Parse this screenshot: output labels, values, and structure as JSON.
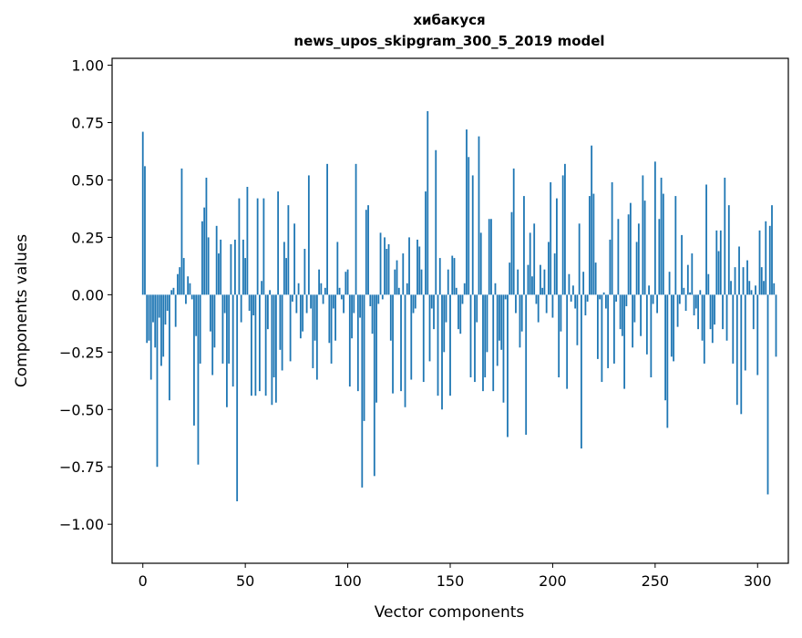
{
  "chart_data": {
    "type": "bar",
    "title": "хибакуся",
    "subtitle": "news_upos_skipgram_300_5_2019 model",
    "xlabel": "Vector components",
    "ylabel": "Components values",
    "xlim": [
      -15,
      315
    ],
    "ylim": [
      -1.17,
      1.03
    ],
    "xticks": [
      0,
      50,
      100,
      150,
      200,
      250,
      300
    ],
    "xtick_labels": [
      "0",
      "50",
      "100",
      "150",
      "200",
      "250",
      "300"
    ],
    "yticks": [
      1.0,
      0.75,
      0.5,
      0.25,
      0.0,
      -0.25,
      -0.5,
      -0.75,
      -1.0
    ],
    "ytick_labels": [
      "1.00",
      "0.75",
      "0.50",
      "0.25",
      "0.00",
      "−0.25",
      "−0.50",
      "−0.75",
      "−1.00"
    ],
    "grid": false,
    "color": "#1f77b4",
    "series": [
      {
        "values": [
          0.71,
          0.56,
          -0.21,
          -0.2,
          -0.37,
          -0.12,
          -0.23,
          -0.75,
          -0.1,
          -0.31,
          -0.27,
          -0.13,
          -0.07,
          -0.46,
          0.02,
          0.03,
          -0.14,
          0.09,
          0.12,
          0.55,
          0.16,
          -0.04,
          0.08,
          0.05,
          -0.02,
          -0.57,
          -0.18,
          -0.74,
          -0.3,
          0.32,
          0.38,
          0.51,
          0.25,
          -0.16,
          -0.35,
          -0.23,
          0.3,
          0.18,
          0.24,
          -0.3,
          -0.08,
          -0.49,
          -0.3,
          0.22,
          -0.4,
          0.24,
          -0.9,
          0.42,
          -0.12,
          0.24,
          0.16,
          0.47,
          -0.07,
          -0.44,
          -0.09,
          -0.44,
          0.42,
          -0.42,
          0.06,
          0.42,
          -0.44,
          -0.15,
          0.02,
          -0.48,
          -0.36,
          -0.47,
          0.45,
          -0.24,
          -0.33,
          0.23,
          0.16,
          0.39,
          -0.29,
          -0.03,
          0.31,
          -0.08,
          0.05,
          -0.19,
          -0.16,
          0.2,
          -0.08,
          0.52,
          -0.06,
          -0.32,
          -0.2,
          -0.37,
          0.11,
          0.05,
          -0.04,
          0.03,
          0.57,
          -0.21,
          -0.3,
          -0.06,
          -0.2,
          0.23,
          0.03,
          -0.02,
          -0.08,
          0.1,
          0.11,
          -0.4,
          -0.19,
          -0.08,
          0.57,
          -0.42,
          -0.1,
          -0.84,
          -0.55,
          0.37,
          0.39,
          -0.05,
          -0.17,
          -0.79,
          -0.47,
          -0.04,
          0.27,
          -0.02,
          0.25,
          0.2,
          0.22,
          -0.2,
          -0.43,
          0.11,
          0.15,
          0.03,
          -0.42,
          0.18,
          -0.49,
          0.05,
          0.25,
          -0.37,
          -0.08,
          -0.06,
          0.24,
          0.21,
          0.11,
          -0.38,
          0.45,
          0.8,
          -0.29,
          -0.06,
          -0.15,
          0.63,
          -0.44,
          0.16,
          -0.5,
          -0.25,
          -0.12,
          0.11,
          -0.44,
          0.17,
          0.16,
          0.03,
          -0.15,
          -0.17,
          -0.04,
          0.05,
          0.72,
          0.6,
          -0.36,
          0.52,
          -0.38,
          -0.12,
          0.69,
          0.27,
          -0.42,
          -0.36,
          -0.25,
          0.33,
          0.33,
          -0.42,
          0.05,
          -0.31,
          -0.2,
          -0.24,
          -0.47,
          -0.02,
          -0.62,
          0.14,
          0.36,
          0.55,
          -0.08,
          0.11,
          -0.23,
          -0.16,
          0.43,
          -0.61,
          0.13,
          0.27,
          0.08,
          0.31,
          -0.04,
          -0.12,
          0.13,
          0.03,
          0.11,
          -0.08,
          0.23,
          0.49,
          -0.1,
          0.18,
          0.42,
          -0.36,
          -0.16,
          0.52,
          0.57,
          -0.41,
          0.09,
          -0.03,
          0.04,
          -0.06,
          -0.22,
          0.31,
          -0.67,
          0.1,
          -0.09,
          -0.03,
          0.43,
          0.65,
          0.44,
          0.14,
          -0.28,
          -0.02,
          -0.38,
          0.01,
          -0.06,
          -0.32,
          0.24,
          0.49,
          -0.3,
          -0.03,
          0.33,
          -0.15,
          -0.18,
          -0.41,
          -0.05,
          0.35,
          0.4,
          -0.23,
          -0.12,
          0.23,
          0.31,
          -0.18,
          0.52,
          0.41,
          -0.26,
          0.04,
          -0.36,
          -0.04,
          0.58,
          -0.08,
          0.33,
          0.51,
          0.44,
          -0.46,
          -0.58,
          0.1,
          -0.27,
          -0.29,
          0.43,
          -0.14,
          -0.04,
          0.26,
          0.03,
          -0.07,
          0.13,
          0.01,
          0.18,
          -0.09,
          -0.06,
          -0.15,
          0.02,
          -0.2,
          -0.3,
          0.48,
          0.09,
          -0.15,
          -0.21,
          -0.13,
          0.28,
          0.19,
          0.28,
          -0.15,
          0.51,
          -0.2,
          0.39,
          0.06,
          -0.3,
          0.12,
          -0.48,
          0.21,
          -0.52,
          0.12,
          -0.33,
          0.15,
          0.06,
          0.02,
          -0.15,
          0.04,
          -0.35,
          0.28,
          0.12,
          0.06,
          0.32,
          -0.87,
          0.3,
          0.39,
          0.05,
          -0.27
        ]
      }
    ]
  }
}
